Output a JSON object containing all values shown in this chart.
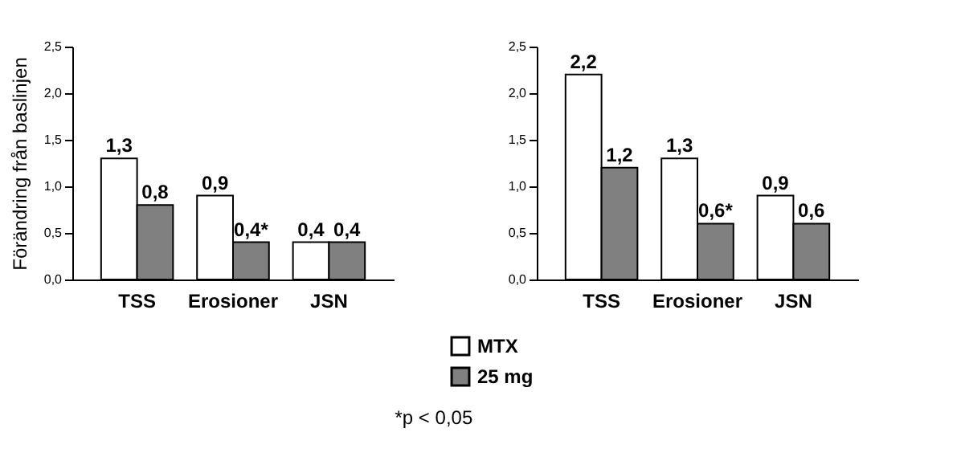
{
  "chart_data": [
    {
      "type": "bar",
      "ylabel": "Förändring från baslinjen",
      "categories": [
        "TSS",
        "Erosioner",
        "JSN"
      ],
      "series": [
        {
          "name": "MTX",
          "color": "#ffffff",
          "values": [
            1.3,
            0.9,
            0.4
          ],
          "value_labels": [
            "1,3",
            "0,9",
            "0,4"
          ]
        },
        {
          "name": "25 mg",
          "color": "#808080",
          "values": [
            0.8,
            0.4,
            0.4
          ],
          "value_labels": [
            "0,8",
            "0,4*",
            "0,4"
          ]
        }
      ],
      "ylim": [
        0,
        2.5
      ],
      "yticks": [
        {
          "value": 0,
          "label": "0,0"
        },
        {
          "value": 0.5,
          "label": "0,5"
        },
        {
          "value": 1,
          "label": "1,0"
        },
        {
          "value": 1.5,
          "label": "1,5"
        },
        {
          "value": 2,
          "label": "2,0"
        },
        {
          "value": 2.5,
          "label": "2,5"
        }
      ],
      "grid": false,
      "legend": "bottom",
      "annotations": [
        "*p < 0,05"
      ]
    },
    {
      "type": "bar",
      "categories": [
        "TSS",
        "Erosioner",
        "JSN"
      ],
      "series": [
        {
          "name": "MTX",
          "color": "#ffffff",
          "values": [
            2.2,
            1.3,
            0.9
          ],
          "value_labels": [
            "2,2",
            "1,3",
            "0,9"
          ]
        },
        {
          "name": "25 mg",
          "color": "#808080",
          "values": [
            1.2,
            0.6,
            0.6
          ],
          "value_labels": [
            "1,2",
            "0,6*",
            "0,6"
          ]
        }
      ],
      "ylim": [
        0,
        2.5
      ],
      "yticks": [
        {
          "value": 0,
          "label": "0,0"
        },
        {
          "value": 0.5,
          "label": "0,5"
        },
        {
          "value": 1,
          "label": "1,0"
        },
        {
          "value": 1.5,
          "label": "1,5"
        },
        {
          "value": 2,
          "label": "2,0"
        },
        {
          "value": 2.5,
          "label": "2,5"
        }
      ],
      "grid": false,
      "legend": "bottom"
    }
  ]
}
